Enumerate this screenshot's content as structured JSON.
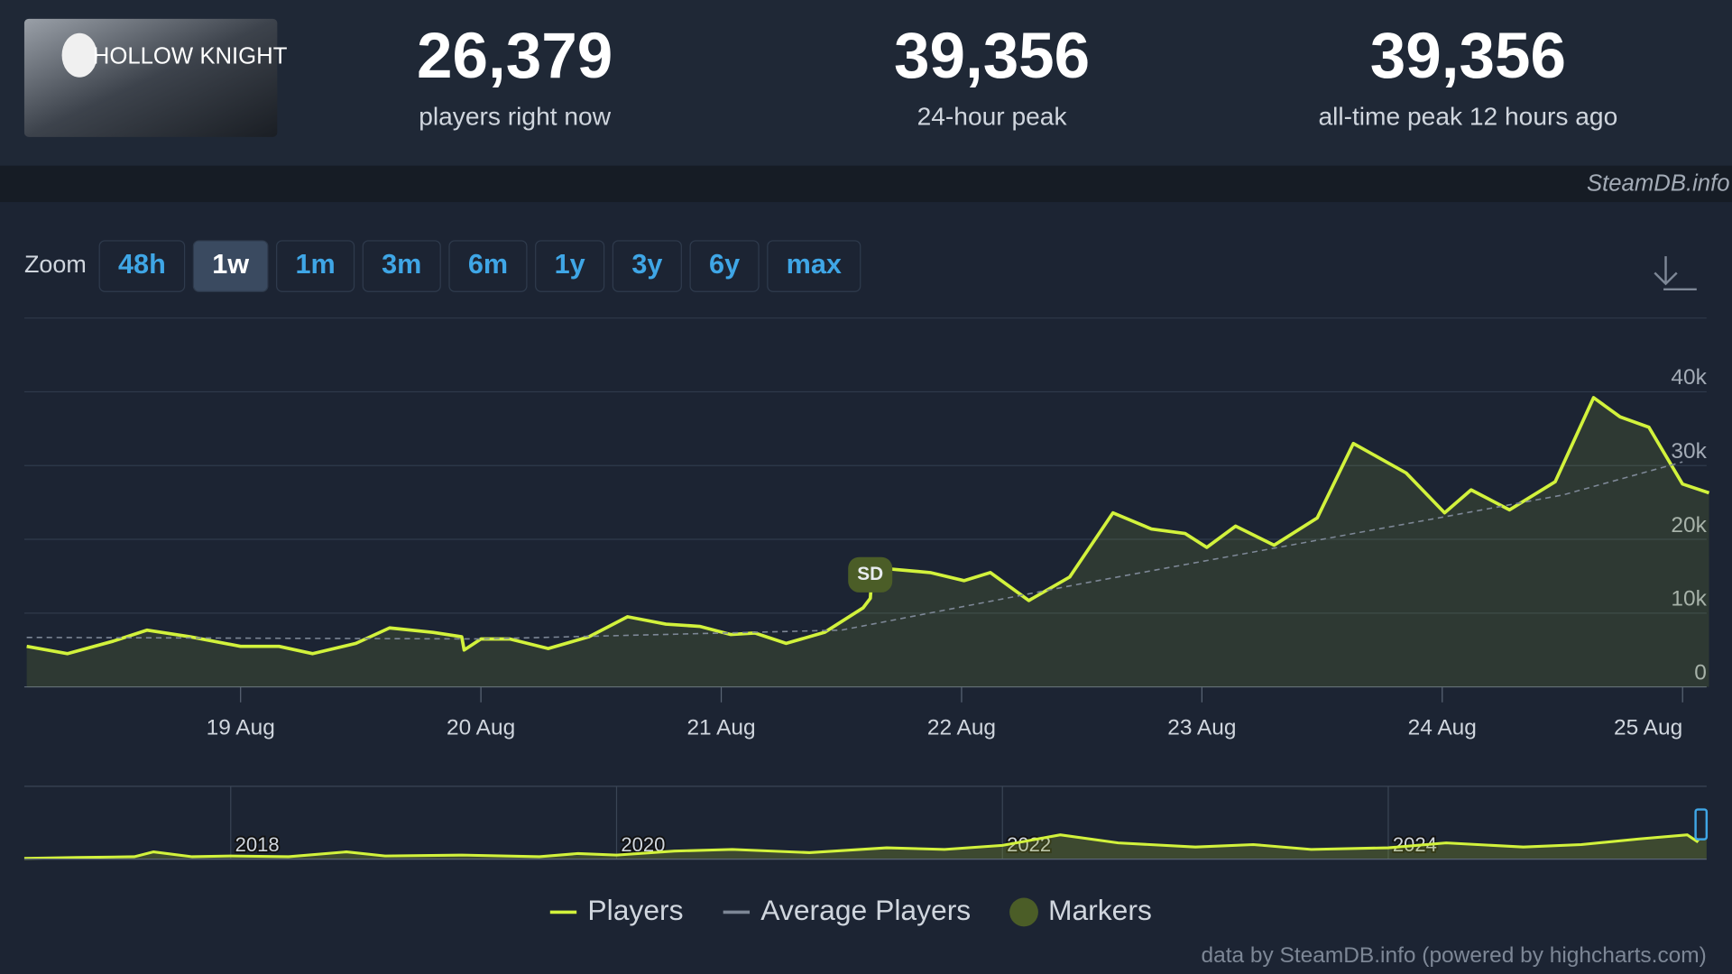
{
  "header": {
    "game_logo_text": "HOLLOW KNIGHT",
    "stats": [
      {
        "value": "26,379",
        "label": "players right now"
      },
      {
        "value": "39,356",
        "label": "24-hour peak"
      },
      {
        "value": "39,356",
        "label": "all-time peak 12 hours ago"
      }
    ],
    "source": "SteamDB.info"
  },
  "zoom": {
    "label": "Zoom",
    "options": [
      {
        "label": "48h"
      },
      {
        "label": "1w",
        "selected": true
      },
      {
        "label": "1m"
      },
      {
        "label": "3m"
      },
      {
        "label": "6m"
      },
      {
        "label": "1y"
      },
      {
        "label": "3y"
      },
      {
        "label": "6y"
      },
      {
        "label": "max"
      }
    ]
  },
  "chart_data": {
    "type": "line",
    "xlim": [
      18.1,
      25.1
    ],
    "xticks": [
      {
        "value": 19,
        "label": "19 Aug"
      },
      {
        "value": 20,
        "label": "20 Aug"
      },
      {
        "value": 21,
        "label": "21 Aug"
      },
      {
        "value": 22,
        "label": "22 Aug"
      },
      {
        "value": 23,
        "label": "23 Aug"
      },
      {
        "value": 24,
        "label": "24 Aug"
      },
      {
        "value": 25,
        "label": "25 Aug"
      }
    ],
    "ylim": [
      0,
      50000
    ],
    "yticks": [
      0,
      {
        "value": 10000,
        "label": "10k"
      },
      {
        "value": 20000,
        "label": "20k"
      },
      {
        "value": 30000,
        "label": "30k"
      },
      {
        "value": 40000,
        "label": "40k"
      }
    ],
    "grid": true,
    "series": [
      {
        "name": "Players",
        "color": "#d2f23c",
        "x": [
          18.11,
          18.28,
          18.47,
          18.61,
          18.79,
          19.0,
          19.16,
          19.3,
          19.48,
          19.62,
          19.8,
          19.92,
          19.93,
          20.0,
          20.12,
          20.28,
          20.45,
          20.61,
          20.77,
          20.91,
          21.04,
          21.14,
          21.27,
          21.43,
          21.59,
          21.62,
          21.63,
          21.87,
          22.01,
          22.12,
          22.28,
          22.45,
          22.63,
          22.79,
          22.93,
          23.02,
          23.14,
          23.3,
          23.48,
          23.63,
          23.85,
          24.01,
          24.12,
          24.28,
          24.47,
          24.63,
          24.74,
          24.86,
          25.0,
          25.11
        ],
        "values": [
          5500,
          4500,
          6200,
          7700,
          6800,
          5500,
          5500,
          4500,
          5900,
          8000,
          7400,
          6800,
          5000,
          6500,
          6500,
          5200,
          6800,
          9500,
          8500,
          8200,
          7100,
          7300,
          5900,
          7400,
          10700,
          12000,
          16200,
          15500,
          14400,
          15500,
          11700,
          14900,
          23600,
          21400,
          20800,
          18900,
          21800,
          19200,
          22900,
          33000,
          29000,
          23600,
          26700,
          24000,
          27800,
          39200,
          36600,
          35200,
          27500,
          26300
        ]
      },
      {
        "name": "Average Players",
        "color": "#7d8796",
        "dashed": true,
        "x": [
          18.11,
          20.0,
          21.5,
          22.5,
          23.5,
          24.5,
          25.0
        ],
        "values": [
          6700,
          6500,
          7700,
          14000,
          20000,
          26000,
          30500
        ]
      }
    ],
    "markers": {
      "name": "Markers",
      "color": "#4b5d27",
      "points": [
        {
          "x": 21.62,
          "y": 15200,
          "label": "SD"
        }
      ]
    },
    "navigator": {
      "xlim": [
        2016.93,
        2025.65
      ],
      "xticks": [
        2018,
        2020,
        2022,
        2024
      ],
      "ylim": [
        0,
        90000
      ],
      "x": [
        2016.93,
        2017.2,
        2017.5,
        2017.6,
        2017.8,
        2018.0,
        2018.3,
        2018.6,
        2018.8,
        2019.2,
        2019.6,
        2019.8,
        2020.0,
        2020.3,
        2020.6,
        2021.0,
        2021.4,
        2021.7,
        2022.0,
        2022.3,
        2022.6,
        2023.0,
        2023.3,
        2023.6,
        2024.0,
        2024.3,
        2024.7,
        2025.0,
        2025.3,
        2025.55,
        2025.6,
        2025.65
      ],
      "values": [
        1000,
        2000,
        3000,
        9000,
        3000,
        4000,
        3000,
        9000,
        4000,
        5000,
        3000,
        7000,
        5000,
        10000,
        12000,
        8000,
        14000,
        12000,
        17000,
        30000,
        20000,
        15000,
        18000,
        12000,
        14000,
        20000,
        15000,
        18000,
        25000,
        30000,
        22000,
        37000
      ]
    }
  },
  "footer": {
    "credit": "data by SteamDB.info (powered by highcharts.com)"
  }
}
